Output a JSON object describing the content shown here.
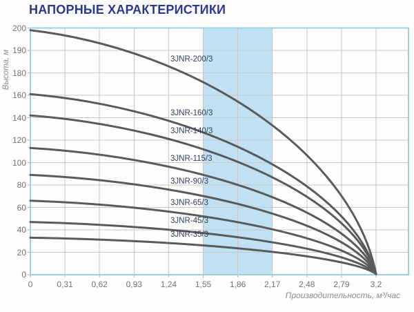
{
  "title": "НАПОРНЫЕ ХАРАКТЕРИСТИКИ",
  "chart_data": {
    "type": "line",
    "title": "НАПОРНЫЕ ХАРАКТЕРИСТИКИ",
    "xlabel": "Производительность, м³/час",
    "ylabel": "Высота, м",
    "x_tick_labels": [
      "0",
      "0,31",
      "0,62",
      "0,93",
      "1,24",
      "1,55",
      "1,86",
      "2,17",
      "2,48",
      "2,79",
      "3,2"
    ],
    "x_tick_values": [
      0,
      0.31,
      0.62,
      0.93,
      1.24,
      1.55,
      1.86,
      2.17,
      2.48,
      2.79,
      3.2
    ],
    "y_tick_labels": [
      "200",
      "190",
      "180",
      "160",
      "140",
      "120",
      "100",
      "80",
      "60",
      "40",
      "20",
      "0"
    ],
    "y_tick_values": [
      200,
      190,
      180,
      160,
      140,
      120,
      100,
      80,
      60,
      40,
      20,
      0
    ],
    "y_axis_note": "gridlines are equally spaced while labels step 20 m up to 180 then 190 and 200 (non-linear scale as printed)",
    "xlim": [
      0,
      3.2
    ],
    "grid": true,
    "legend_position": "labels-on-curves",
    "highlight_band": {
      "x_from": 1.55,
      "x_to": 2.17
    },
    "curves_converge_at": {
      "flow_m3_per_h": 3.2,
      "head_m": 0
    },
    "series": [
      {
        "name": "3JNR-200/3",
        "head_m_at_q0": 199,
        "head_m_at_qmax": 0
      },
      {
        "name": "3JNR-160/3",
        "head_m_at_q0": 161,
        "head_m_at_qmax": 0
      },
      {
        "name": "3JNR-140/3",
        "head_m_at_q0": 142,
        "head_m_at_qmax": 0
      },
      {
        "name": "3JNR-115/3",
        "head_m_at_q0": 113,
        "head_m_at_qmax": 0
      },
      {
        "name": "3JNR-90/3",
        "head_m_at_q0": 89,
        "head_m_at_qmax": 0
      },
      {
        "name": "3JNR-65/3",
        "head_m_at_q0": 66,
        "head_m_at_qmax": 0
      },
      {
        "name": "3JNR-45/3",
        "head_m_at_q0": 47,
        "head_m_at_qmax": 0
      },
      {
        "name": "3JNR-35/3",
        "head_m_at_q0": 33,
        "head_m_at_qmax": 0
      }
    ],
    "colors": {
      "title": "#2b3890",
      "curve": "#5a5a5a",
      "grid": "#c8c8c8",
      "plot_border": "#9cd0e0",
      "band": "#bfe1f3",
      "tick_text": "#737373",
      "axis_title_text": "#8c8c8c",
      "curve_label_text": "#31415e"
    }
  }
}
